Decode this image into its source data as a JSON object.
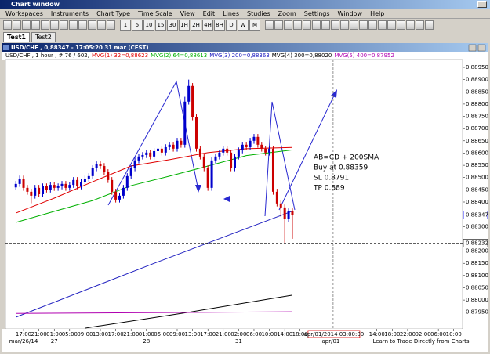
{
  "window": {
    "title": "Chart window"
  },
  "menu": [
    "Workspaces",
    "Instruments",
    "Chart Type",
    "Time Scale",
    "View",
    "Edit",
    "Lines",
    "Studies",
    "Zoom",
    "Settings",
    "Window",
    "Help"
  ],
  "toolbar": {
    "timeframes": [
      "1",
      "5",
      "10",
      "15",
      "30",
      "1H",
      "2H",
      "4H",
      "8H",
      "D",
      "W",
      "M"
    ]
  },
  "tabs": [
    "Test1",
    "Test2"
  ],
  "footer_link": "Learn to Trade Directly from Charts",
  "chart_data": {
    "type": "candlestick",
    "title": "USD/CHF , 0,88347 - 17:05:20 31 mar (CEST)",
    "subtitle": "USD/CHF , 1 hour , # 76 / 602,",
    "up_color": "#0000cc",
    "down_color": "#cc0000",
    "open": [
      0.8846,
      0.88474,
      0.88496,
      0.88458,
      0.88442,
      0.88426,
      0.88458,
      0.88432,
      0.88464,
      0.88451,
      0.8847,
      0.88458,
      0.88464,
      0.88474,
      0.88458,
      0.8847,
      0.8849,
      0.88464,
      0.88483,
      0.88496,
      0.88506,
      0.88538,
      0.88554,
      0.88547,
      0.88522,
      0.8849,
      0.88442,
      0.8841,
      0.88426,
      0.88458,
      0.88506,
      0.88538,
      0.8857,
      0.88586,
      0.88592,
      0.88602,
      0.88586,
      0.88608,
      0.88618,
      0.88602,
      0.88624,
      0.88634,
      0.88618,
      0.8865,
      0.88634,
      0.8881,
      0.88874,
      0.88746,
      0.88618,
      0.88586,
      0.88538,
      0.88458,
      0.8857,
      0.88586,
      0.88602,
      0.88618,
      0.88602,
      0.88538,
      0.88586,
      0.88611,
      0.88634,
      0.88624,
      0.8865,
      0.88666,
      0.88634,
      0.88618,
      0.88602,
      0.88618,
      0.88442,
      0.88394,
      0.88378,
      0.8833,
      0.88362
    ],
    "high": [
      0.88486,
      0.88508,
      0.88508,
      0.8847,
      0.88454,
      0.8847,
      0.8847,
      0.88476,
      0.88476,
      0.88482,
      0.88482,
      0.88476,
      0.88486,
      0.88486,
      0.88482,
      0.88502,
      0.88502,
      0.88495,
      0.88508,
      0.88518,
      0.8855,
      0.88566,
      0.88566,
      0.88559,
      0.88534,
      0.88502,
      0.88454,
      0.88438,
      0.8847,
      0.88518,
      0.8855,
      0.88582,
      0.88598,
      0.88604,
      0.88614,
      0.88614,
      0.8862,
      0.8863,
      0.8863,
      0.88636,
      0.88646,
      0.88646,
      0.88662,
      0.88662,
      0.8883,
      0.889,
      0.88886,
      0.88758,
      0.8863,
      0.88598,
      0.8855,
      0.88582,
      0.88598,
      0.88614,
      0.8863,
      0.8863,
      0.88614,
      0.88598,
      0.88623,
      0.88646,
      0.88646,
      0.88662,
      0.88678,
      0.88678,
      0.88646,
      0.8863,
      0.8863,
      0.8863,
      0.88454,
      0.88406,
      0.8839,
      0.88374,
      0.88374
    ],
    "low": [
      0.88448,
      0.88462,
      0.88446,
      0.8843,
      0.88395,
      0.88414,
      0.8842,
      0.8842,
      0.88439,
      0.88439,
      0.88446,
      0.88446,
      0.88452,
      0.88446,
      0.88446,
      0.88458,
      0.88452,
      0.88452,
      0.88471,
      0.88484,
      0.88494,
      0.88526,
      0.88535,
      0.8851,
      0.88478,
      0.8843,
      0.88398,
      0.88398,
      0.88414,
      0.88446,
      0.88494,
      0.88526,
      0.88558,
      0.88574,
      0.8858,
      0.88574,
      0.88574,
      0.88596,
      0.8859,
      0.8859,
      0.88612,
      0.88606,
      0.88606,
      0.88622,
      0.88622,
      0.88798,
      0.88734,
      0.88606,
      0.88574,
      0.88526,
      0.88446,
      0.88446,
      0.88558,
      0.88574,
      0.8859,
      0.8859,
      0.88526,
      0.88526,
      0.88574,
      0.88599,
      0.88612,
      0.88612,
      0.88638,
      0.88622,
      0.88606,
      0.8859,
      0.8859,
      0.8843,
      0.88382,
      0.8834,
      0.88234,
      0.88318,
      0.8825
    ],
    "close": [
      0.88474,
      0.88496,
      0.88458,
      0.88442,
      0.88426,
      0.88458,
      0.88432,
      0.88464,
      0.88451,
      0.8847,
      0.88458,
      0.88464,
      0.88474,
      0.88458,
      0.8847,
      0.8849,
      0.88464,
      0.88483,
      0.88496,
      0.88506,
      0.88538,
      0.88554,
      0.88547,
      0.88522,
      0.8849,
      0.88442,
      0.8841,
      0.88426,
      0.88458,
      0.88506,
      0.88538,
      0.8857,
      0.88586,
      0.88592,
      0.88602,
      0.88586,
      0.88608,
      0.88618,
      0.88602,
      0.88624,
      0.88634,
      0.88618,
      0.8865,
      0.88634,
      0.8881,
      0.88874,
      0.88746,
      0.88618,
      0.88586,
      0.88538,
      0.88458,
      0.8857,
      0.88586,
      0.88602,
      0.88618,
      0.88602,
      0.88538,
      0.88586,
      0.88611,
      0.88634,
      0.88624,
      0.8865,
      0.88666,
      0.88634,
      0.88618,
      0.88602,
      0.88618,
      0.88442,
      0.88394,
      0.88378,
      0.8833,
      0.88362,
      0.88347
    ],
    "series": [
      {
        "name": "MVG(1) 32=0,88623",
        "color": "#e00000",
        "x": [
          0,
          10,
          20,
          30,
          40,
          50,
          60,
          72
        ],
        "values": [
          0.88355,
          0.88416,
          0.88483,
          0.88547,
          0.88573,
          0.88602,
          0.88618,
          0.88623
        ]
      },
      {
        "name": "MVG(2) 64=0,88613",
        "color": "#00b000",
        "x": [
          0,
          10,
          20,
          30,
          40,
          50,
          60,
          72
        ],
        "values": [
          0.88317,
          0.88362,
          0.88406,
          0.88467,
          0.88506,
          0.88547,
          0.8859,
          0.88613
        ]
      },
      {
        "name": "MVG(3) 200=0,88363",
        "color": "#2020c0",
        "x": [
          0,
          36,
          72
        ],
        "values": [
          0.8793,
          0.8815,
          0.88363
        ]
      },
      {
        "name": "MVG(4) 300=0,88020",
        "color": "#000000",
        "x": [
          18,
          45,
          72
        ],
        "values": [
          0.87885,
          0.8795,
          0.8802
        ]
      },
      {
        "name": "MVG(5) 400=0,87952",
        "color": "#b000b0",
        "x": [
          0,
          72
        ],
        "values": [
          0.87945,
          0.87952
        ]
      }
    ],
    "xlim": [
      -2.7,
      116.3
    ],
    "xticks": [
      {
        "value": 2,
        "label": "17:00"
      },
      {
        "value": 6,
        "label": "21:00"
      },
      {
        "value": 10,
        "label": "01:00"
      },
      {
        "value": 14,
        "label": "05:00"
      },
      {
        "value": 18,
        "label": "09:00"
      },
      {
        "value": 22,
        "label": "13:00"
      },
      {
        "value": 26,
        "label": "17:00"
      },
      {
        "value": 30,
        "label": "21:00"
      },
      {
        "value": 34,
        "label": "01:00"
      },
      {
        "value": 38,
        "label": "05:00"
      },
      {
        "value": 42,
        "label": "09:00"
      },
      {
        "value": 46,
        "label": "13:00"
      },
      {
        "value": 50,
        "label": "17:00"
      },
      {
        "value": 54,
        "label": "21:00"
      },
      {
        "value": 58,
        "label": "02:00"
      },
      {
        "value": 62,
        "label": "06:00"
      },
      {
        "value": 66,
        "label": "10:00"
      },
      {
        "value": 70,
        "label": "14:00"
      },
      {
        "value": 74,
        "label": "18:00"
      },
      {
        "value": 94,
        "label": "14:00"
      },
      {
        "value": 98,
        "label": "18:00"
      },
      {
        "value": 102,
        "label": "22:00"
      },
      {
        "value": 106,
        "label": "02:00"
      },
      {
        "value": 110,
        "label": "06:00"
      },
      {
        "value": 114,
        "label": "10:00"
      }
    ],
    "date_ticks": [
      {
        "value": 2,
        "label": "mar/26/14"
      },
      {
        "value": 10,
        "label": "27"
      },
      {
        "value": 34,
        "label": "28"
      },
      {
        "value": 58,
        "label": "31"
      },
      {
        "value": 82,
        "label": "apr/01"
      }
    ],
    "ylim": [
      0.87882,
      0.88982
    ],
    "yticks": [
      {
        "value": 0.8795,
        "label": "0,87950"
      },
      {
        "value": 0.88,
        "label": "0,88000"
      },
      {
        "value": 0.8805,
        "label": "0,88050"
      },
      {
        "value": 0.881,
        "label": "0,88100"
      },
      {
        "value": 0.8815,
        "label": "0,88150"
      },
      {
        "value": 0.882,
        "label": "0,88200"
      },
      {
        "value": 0.883,
        "label": "0,88300"
      },
      {
        "value": 0.884,
        "label": "0,88400"
      },
      {
        "value": 0.8845,
        "label": "0,88450"
      },
      {
        "value": 0.885,
        "label": "0,88500"
      },
      {
        "value": 0.8855,
        "label": "0,88550"
      },
      {
        "value": 0.886,
        "label": "0,88600"
      },
      {
        "value": 0.8865,
        "label": "0,88650"
      },
      {
        "value": 0.887,
        "label": "0,88700"
      },
      {
        "value": 0.8875,
        "label": "0,88750"
      },
      {
        "value": 0.888,
        "label": "0,88800"
      },
      {
        "value": 0.8885,
        "label": "0,88850"
      },
      {
        "value": 0.889,
        "label": "0,88900"
      },
      {
        "value": 0.8895,
        "label": "0,88950"
      }
    ],
    "price_line": {
      "value": 0.88347,
      "label": "0,88347",
      "color": "#0000ff"
    },
    "crosshair": {
      "y": {
        "value": 0.88232,
        "label": "0,88232"
      },
      "x": {
        "value": 82.6,
        "label": "apr/01/2014 03:00:00"
      }
    },
    "annotations": [
      "AB=CD + 200SMA",
      "Buy at 0.88359",
      "SL 0.8791",
      "TP 0.889"
    ]
  }
}
